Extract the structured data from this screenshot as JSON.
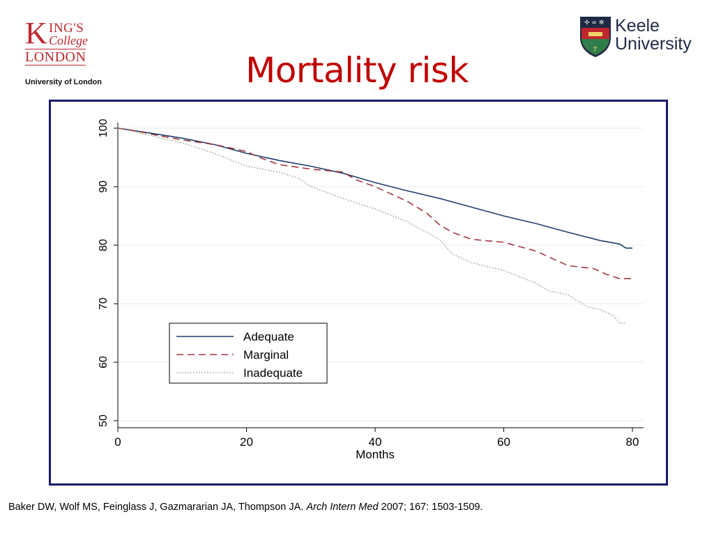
{
  "slide": {
    "title": "Mortality risk",
    "citation_authors": "Baker DW, Wolf MS, Feinglass J, Gazmararian JA, Thompson JA. ",
    "citation_journal": "Arch Intern Med",
    "citation_rest": " 2007; 167: 1503-1509",
    "citation_end": "."
  },
  "logos": {
    "kings_k": "K",
    "kings_ings": "ING'S",
    "kings_college": "College",
    "kings_london": "LONDON",
    "kings_uol": "University of London",
    "keele_line1": "Keele",
    "keele_line2": "University"
  },
  "colors": {
    "title": "#c00000",
    "frame": "#1a1a6e",
    "adequate": "#1f3f6e",
    "marginal": "#a0343a",
    "inadequate": "#9aa58a"
  },
  "chart_data": {
    "type": "line",
    "xlabel": "Months",
    "ylabel": "",
    "xlim": [
      0,
      80
    ],
    "ylim": [
      50,
      100
    ],
    "xticks": [
      0,
      20,
      40,
      60,
      80
    ],
    "yticks": [
      50,
      60,
      70,
      80,
      90,
      100
    ],
    "grid": true,
    "legend_position": "lower-left",
    "series": [
      {
        "name": "Adequate",
        "style": "solid",
        "x": [
          0,
          3,
          6,
          10,
          15,
          20,
          25,
          30,
          35,
          40,
          45,
          50,
          55,
          60,
          65,
          70,
          75,
          78,
          79,
          80
        ],
        "y": [
          100,
          99.5,
          99,
          98.3,
          97.2,
          95.7,
          94.5,
          93.5,
          92.3,
          90.7,
          89.3,
          88,
          86.5,
          85,
          83.7,
          82.2,
          80.8,
          80.2,
          79.5,
          79.5
        ]
      },
      {
        "name": "Marginal",
        "style": "dashed",
        "x": [
          0,
          3,
          6,
          10,
          15,
          18,
          20,
          22,
          25,
          30,
          35,
          37,
          40,
          45,
          48,
          50,
          52,
          55,
          58,
          60,
          65,
          70,
          74,
          76,
          78,
          80
        ],
        "y": [
          100,
          99.5,
          98.8,
          98,
          97.2,
          96.5,
          96,
          95,
          93.8,
          93,
          92.5,
          91.2,
          90,
          87.5,
          85.5,
          83.5,
          82.2,
          81,
          80.7,
          80.5,
          79,
          76.5,
          76,
          75,
          74.3,
          74.3
        ]
      },
      {
        "name": "Inadequate",
        "style": "dotted",
        "x": [
          0,
          3,
          6,
          10,
          15,
          20,
          25,
          28,
          30,
          35,
          40,
          45,
          50,
          52,
          54,
          55,
          58,
          60,
          65,
          67,
          70,
          73,
          75,
          77,
          78,
          79
        ],
        "y": [
          100,
          99.3,
          98.5,
          97.5,
          95.7,
          93.5,
          92.5,
          91.5,
          90,
          88,
          86.2,
          84,
          81,
          78.5,
          77.5,
          77,
          76.2,
          75.7,
          73.5,
          72.2,
          71.5,
          69.5,
          69,
          68,
          66.7,
          66.7
        ]
      }
    ]
  }
}
